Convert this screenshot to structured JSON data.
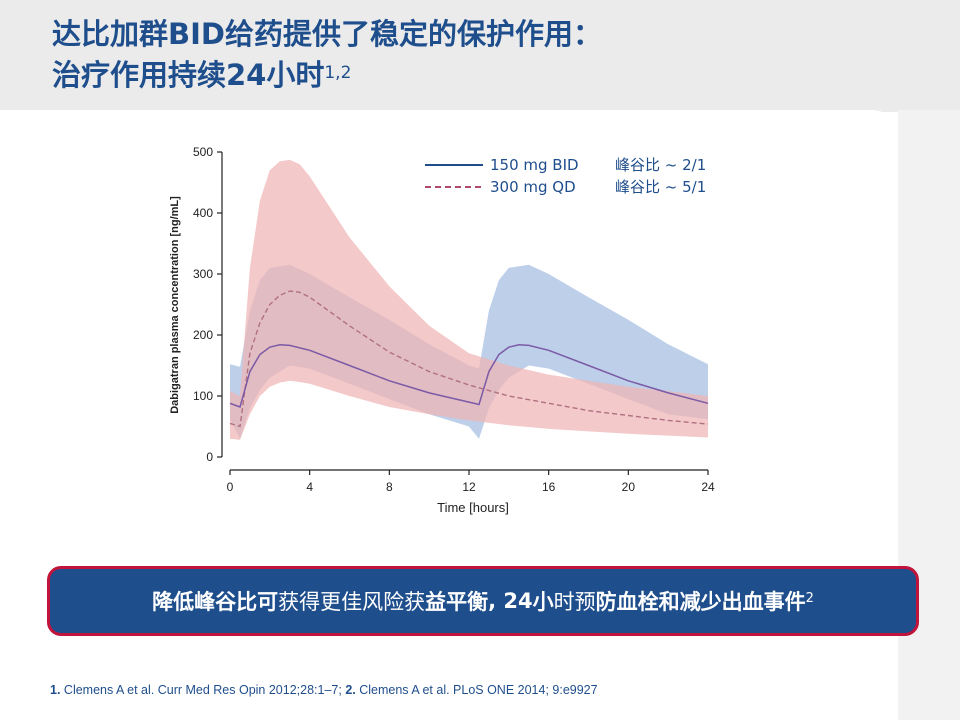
{
  "slide": {
    "title_line1": "达比加群BID给药提供了稳定的保护作用：",
    "title_line2": "治疗作用持续24小时",
    "title_sup": "1,2"
  },
  "callout": {
    "text_bold_a": "降低峰谷比可",
    "text_normal_a": "获得更佳",
    "text_normal_b": "风险获",
    "text_bold_b": "益平衡",
    "text_normal_c": ", 24",
    "text_bold_c": "小",
    "text_normal_d": "时预",
    "text_bold_d": "防血栓和减少出血事件",
    "sup": "2"
  },
  "references": {
    "n1": "1.",
    "ref1": " Clemens A et al. Curr Med Res Opin 2012;28:1–7; ",
    "n2": "2.",
    "ref2": " Clemens A et al. PLoS ONE 2014; 9:e9927"
  },
  "colors": {
    "title": "#1f4e8c",
    "bid_line": "#7b5aa6",
    "qd_line": "#b07082",
    "bid_band": "#b3c7e6",
    "qd_band": "#f0b4b4",
    "callout_bg": "#1f4e8c",
    "callout_border": "#c0143c"
  },
  "chart_data": {
    "type": "line",
    "xlabel": "Time [hours]",
    "ylabel": "Dabigatran plasma concentration [ng/mL]",
    "xlim": [
      0,
      24
    ],
    "ylim": [
      0,
      500
    ],
    "xticks": [
      0,
      4,
      8,
      12,
      16,
      20,
      24
    ],
    "yticks": [
      0,
      100,
      200,
      300,
      400,
      500
    ],
    "legend": [
      {
        "name": "150 mg BID",
        "style": "solid",
        "ratio_label": "峰谷比 ~ 2/1"
      },
      {
        "name": "300 mg QD",
        "style": "dashed",
        "ratio_label": "峰谷比 ~ 5/1"
      }
    ],
    "series": [
      {
        "name": "150 mg BID median",
        "x": [
          0,
          0.5,
          1,
          1.5,
          2,
          2.5,
          3,
          4,
          6,
          8,
          10,
          12,
          12.5,
          13,
          13.5,
          14,
          14.5,
          15,
          16,
          18,
          20,
          22,
          24
        ],
        "values": [
          88,
          82,
          140,
          168,
          180,
          184,
          183,
          175,
          150,
          125,
          105,
          90,
          86,
          140,
          168,
          180,
          184,
          183,
          175,
          150,
          125,
          105,
          88
        ]
      },
      {
        "name": "300 mg QD median",
        "x": [
          0,
          0.5,
          1,
          1.5,
          2,
          2.5,
          3,
          3.5,
          4,
          6,
          8,
          10,
          12,
          14,
          16,
          18,
          20,
          22,
          24
        ],
        "values": [
          55,
          50,
          170,
          220,
          250,
          265,
          272,
          270,
          262,
          215,
          172,
          140,
          118,
          100,
          88,
          76,
          68,
          60,
          54
        ]
      },
      {
        "name": "150 mg BID range",
        "x": [
          0,
          0.5,
          1,
          1.5,
          2,
          3,
          4,
          6,
          8,
          10,
          12,
          12.5,
          13,
          13.5,
          14,
          15,
          16,
          18,
          20,
          22,
          24
        ],
        "upper": [
          152,
          148,
          240,
          290,
          310,
          315,
          300,
          262,
          225,
          185,
          150,
          145,
          240,
          290,
          310,
          315,
          300,
          262,
          225,
          185,
          152
        ],
        "lower": [
          62,
          30,
          80,
          110,
          130,
          150,
          145,
          120,
          95,
          70,
          50,
          30,
          80,
          110,
          130,
          150,
          145,
          120,
          95,
          70,
          62
        ]
      },
      {
        "name": "300 mg QD range",
        "x": [
          0,
          0.5,
          1,
          1.5,
          2,
          2.5,
          3,
          3.5,
          4,
          6,
          8,
          10,
          12,
          14,
          16,
          18,
          20,
          22,
          24
        ],
        "upper": [
          108,
          100,
          310,
          420,
          470,
          485,
          487,
          480,
          460,
          360,
          280,
          215,
          170,
          150,
          135,
          125,
          115,
          108,
          100
        ],
        "lower": [
          30,
          28,
          70,
          100,
          115,
          122,
          125,
          123,
          120,
          100,
          82,
          70,
          60,
          52,
          46,
          42,
          38,
          35,
          32
        ]
      }
    ]
  }
}
